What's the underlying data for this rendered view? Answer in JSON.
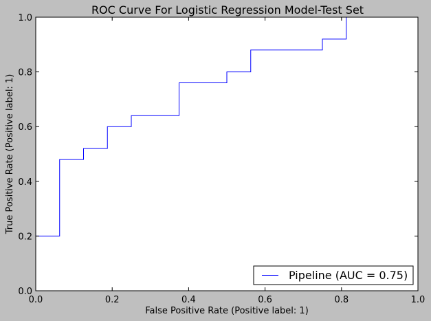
{
  "chart_data": {
    "type": "line",
    "title": "ROC Curve For Logistic Regression Model-Test Set",
    "xlabel": "False Positive Rate (Positive label: 1)",
    "ylabel": "True Positive Rate (Positive label: 1)",
    "xlim": [
      0,
      1
    ],
    "ylim": [
      0,
      1
    ],
    "xticks": [
      "0.0",
      "0.2",
      "0.4",
      "0.6",
      "0.8",
      "1.0"
    ],
    "yticks": [
      "0.0",
      "0.2",
      "0.4",
      "0.6",
      "0.8",
      "1.0"
    ],
    "grid": false,
    "legend_position": "bottom-right",
    "series": [
      {
        "name": "Pipeline (AUC = 0.75)",
        "color": "#0000ff",
        "x": [
          0.0,
          0.0,
          0.0625,
          0.0625,
          0.125,
          0.125,
          0.1875,
          0.1875,
          0.25,
          0.25,
          0.375,
          0.375,
          0.5,
          0.5,
          0.5625,
          0.5625,
          0.75,
          0.75,
          0.8125,
          0.8125
        ],
        "y": [
          0.0,
          0.2,
          0.2,
          0.48,
          0.48,
          0.52,
          0.52,
          0.6,
          0.6,
          0.64,
          0.64,
          0.76,
          0.76,
          0.8,
          0.8,
          0.88,
          0.88,
          0.92,
          0.92,
          1.0
        ]
      }
    ]
  }
}
